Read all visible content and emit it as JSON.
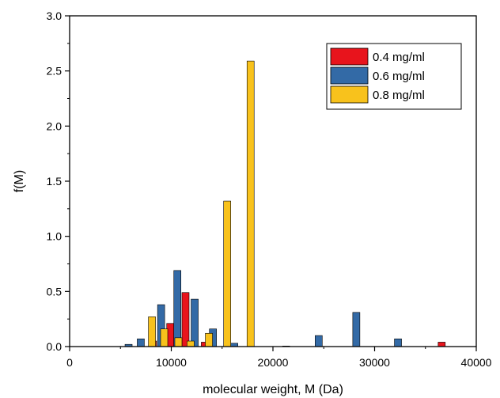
{
  "chart_data": {
    "type": "bar",
    "xlabel": "molecular weight, M (Da)",
    "ylabel": "f(M)",
    "xlim": [
      0,
      40000
    ],
    "ylim": [
      0,
      3.0
    ],
    "xticks": [
      "0",
      "10000",
      "20000",
      "30000",
      "40000"
    ],
    "yticks": [
      "0.0",
      "0.5",
      "1.0",
      "1.5",
      "2.0",
      "2.5",
      "3.0"
    ],
    "grid": false,
    "legend_position": "top-right",
    "bar_width_da": 700,
    "series": [
      {
        "name": "0.4 mg/ml",
        "color": "#e8141c",
        "x": [
          8200,
          9900,
          11400,
          13300,
          36600
        ],
        "values": [
          0.05,
          0.21,
          0.49,
          0.04,
          0.04
        ]
      },
      {
        "name": "0.6 mg/ml",
        "color": "#336aa6",
        "x": [
          5800,
          7000,
          9000,
          10600,
          12300,
          14100,
          16200,
          21300,
          24500,
          28200,
          32300
        ],
        "values": [
          0.02,
          0.07,
          0.38,
          0.69,
          0.43,
          0.16,
          0.03,
          0.005,
          0.1,
          0.31,
          0.07
        ]
      },
      {
        "name": "0.8 mg/ml",
        "color": "#f8c21c",
        "x": [
          8100,
          9300,
          10700,
          11900,
          13700,
          15500,
          17800
        ],
        "values": [
          0.27,
          0.16,
          0.08,
          0.05,
          0.12,
          1.32,
          2.59
        ]
      }
    ]
  }
}
